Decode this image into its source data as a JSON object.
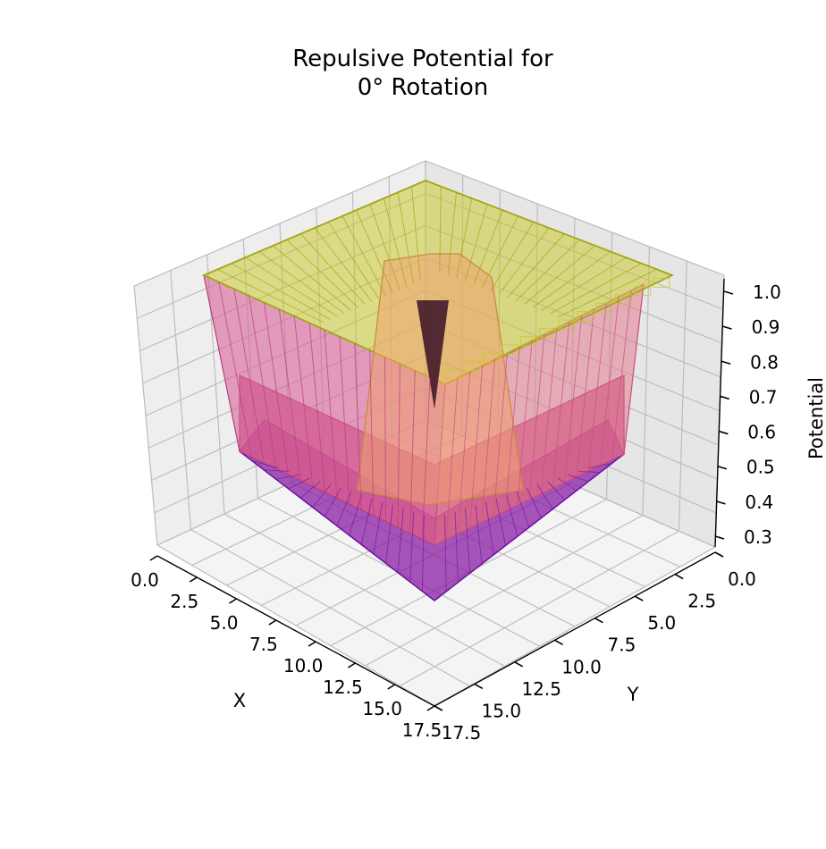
{
  "chart_data": {
    "type": "surface3d",
    "title_line1": "Repulsive Potential for",
    "title_line2": "0° Rotation",
    "xlabel": "X",
    "ylabel": "Y",
    "zlabel": "Potential",
    "xlim": [
      0,
      17.5
    ],
    "ylim": [
      0,
      17.5
    ],
    "zlim": [
      0.25,
      1.0
    ],
    "x_ticks": [
      "0.0",
      "2.5",
      "5.0",
      "7.5",
      "10.0",
      "12.5",
      "15.0",
      "17.5"
    ],
    "y_ticks": [
      "0.0",
      "2.5",
      "5.0",
      "7.5",
      "10.0",
      "12.5",
      "15.0",
      "17.5"
    ],
    "z_ticks": [
      "0.3",
      "0.4",
      "0.5",
      "0.6",
      "0.7",
      "0.8",
      "0.9",
      "1.0"
    ],
    "grid": true,
    "colormap": "plasma",
    "colors": {
      "low": "#6a0fa0",
      "mid": "#c83f7a",
      "high": "#c8c820",
      "pane": "#f2f2f2"
    }
  }
}
